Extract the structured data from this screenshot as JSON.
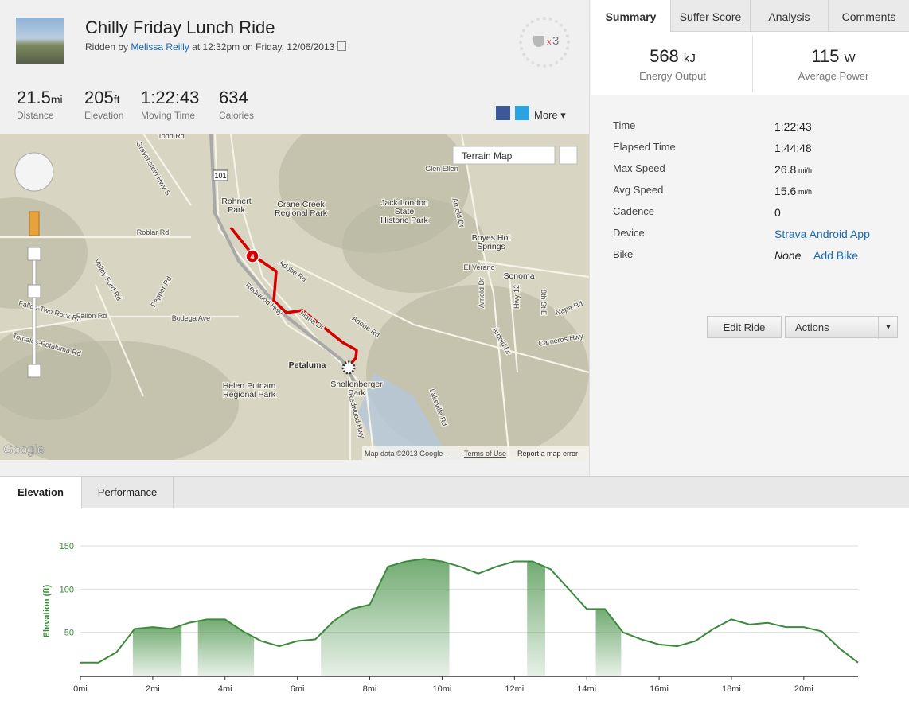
{
  "header": {
    "title": "Chilly Friday Lunch Ride",
    "ridden_by": "Ridden by",
    "athlete": "Melissa Reilly",
    "when": "at 12:32pm on Friday, 12/06/2013",
    "achievement_prefix": "x",
    "achievement_count": "3",
    "more": "More"
  },
  "stats": [
    {
      "value": "21.5",
      "unit": "mi",
      "label": "Distance"
    },
    {
      "value": "205",
      "unit": "ft",
      "label": "Elevation"
    },
    {
      "value": "1:22:43",
      "label": "Moving Time"
    },
    {
      "value": "634",
      "label": "Calories"
    }
  ],
  "tabs": [
    "Summary",
    "Suffer Score",
    "Analysis",
    "Comments"
  ],
  "highlights": [
    {
      "value": "568",
      "unit": "kJ",
      "label": "Energy Output"
    },
    {
      "value": "115",
      "unit": "W",
      "label": "Average Power"
    }
  ],
  "details": [
    {
      "label": "Time",
      "value": "1:22:43"
    },
    {
      "label": "Elapsed Time",
      "value": "1:44:48"
    },
    {
      "label": "Max Speed",
      "value": "26.8",
      "unit": "mi/h"
    },
    {
      "label": "Avg Speed",
      "value": "15.6",
      "unit": "mi/h"
    },
    {
      "label": "Cadence",
      "value": "0"
    },
    {
      "label": "Device",
      "value": "Strava Android App"
    },
    {
      "label": "Bike",
      "value": "None",
      "link": "Add Bike"
    }
  ],
  "buttons": {
    "edit": "Edit Ride",
    "actions": "Actions"
  },
  "map": {
    "type_selector": "Terrain Map",
    "attribution": "Map data ©2013 Google - ",
    "terms": "Terms of Use",
    "report": "Report a map error",
    "logo": "Google",
    "shield": "101",
    "marker": "4",
    "labels": [
      [
        "Todd Rd"
      ],
      [
        "Gravenstein Hwy S"
      ],
      [
        "Rohnert",
        "Park"
      ],
      [
        "Crane Creek",
        "Regional Park"
      ],
      [
        "Glen Ellen"
      ],
      [
        "Jack London",
        "State",
        "Historic Park"
      ],
      [
        "Arnold Dr"
      ],
      [
        "Roblar Rd"
      ],
      [
        "Adobe Rd"
      ],
      [
        "Boyes Hot",
        "Springs"
      ],
      [
        "El Verano"
      ],
      [
        "Sonoma"
      ],
      [
        "Valley Ford Rd"
      ],
      [
        "Pepper Rd"
      ],
      [
        "Fallon-Two Rock Rd"
      ],
      [
        "Fallon Rd"
      ],
      [
        "Bodega Ave"
      ],
      [
        "Redwood Hwy"
      ],
      [
        "Maria Dr"
      ],
      [
        "Adobe Rd"
      ],
      [
        "Tomales-Petaluma Rd"
      ],
      [
        "Petaluma"
      ],
      [
        "Shollenberger",
        "Park"
      ],
      [
        "Helen Putnam",
        "Regional Park"
      ],
      [
        "Carneros Hwy"
      ],
      [
        "Napa Rd"
      ],
      [
        "8th St E"
      ],
      [
        "Hwy 12"
      ],
      [
        "Arnold Dr"
      ],
      [
        "Lakeville Rd"
      ],
      [
        "Redwood Hwy"
      ],
      [
        "Arnold Dr"
      ]
    ]
  },
  "bottom_tabs": [
    "Elevation",
    "Performance"
  ],
  "chart_data": {
    "type": "area",
    "y_label": "Elevation (ft)",
    "x": [
      0,
      0.5,
      1,
      1.5,
      2,
      2.5,
      3,
      3.5,
      4,
      4.5,
      5,
      5.5,
      6,
      6.5,
      7,
      7.5,
      8,
      8.5,
      9,
      9.5,
      10,
      10.5,
      11,
      11.5,
      12,
      12.5,
      13,
      13.5,
      14,
      14.5,
      15,
      15.5,
      16,
      16.5,
      17,
      17.5,
      18,
      18.5,
      19,
      19.5,
      20,
      20.5,
      21,
      21.5
    ],
    "series": [
      {
        "name": "Elevation",
        "color": "#3b8a3b",
        "values": [
          15,
          15,
          27,
          54,
          56,
          54,
          61,
          65,
          65,
          51,
          40,
          34,
          40,
          42,
          63,
          77,
          82,
          126,
          132,
          135,
          132,
          126,
          118,
          126,
          132,
          132,
          123,
          100,
          77,
          77,
          50,
          42,
          36,
          34,
          40,
          54,
          65,
          59,
          61,
          56,
          56,
          51,
          31,
          15
        ]
      }
    ],
    "segments": [
      {
        "start": 1.45,
        "end": 2.8
      },
      {
        "start": 3.25,
        "end": 4.8
      },
      {
        "start": 6.65,
        "end": 10.2
      },
      {
        "start": 12.35,
        "end": 12.85
      },
      {
        "start": 14.25,
        "end": 14.95
      }
    ],
    "xlim": [
      0,
      21.5
    ],
    "ylim": [
      0,
      150
    ],
    "xticks": [
      {
        "value": 0,
        "label": "0mi"
      },
      {
        "value": 2,
        "label": "2mi"
      },
      {
        "value": 4,
        "label": "4mi"
      },
      {
        "value": 6,
        "label": "6mi"
      },
      {
        "value": 8,
        "label": "8mi"
      },
      {
        "value": 10,
        "label": "10mi"
      },
      {
        "value": 12,
        "label": "12mi"
      },
      {
        "value": 14,
        "label": "14mi"
      },
      {
        "value": 16,
        "label": "16mi"
      },
      {
        "value": 18,
        "label": "18mi"
      },
      {
        "value": 20,
        "label": "20mi"
      }
    ],
    "yticks": [
      50,
      100,
      150
    ],
    "grid": true
  }
}
